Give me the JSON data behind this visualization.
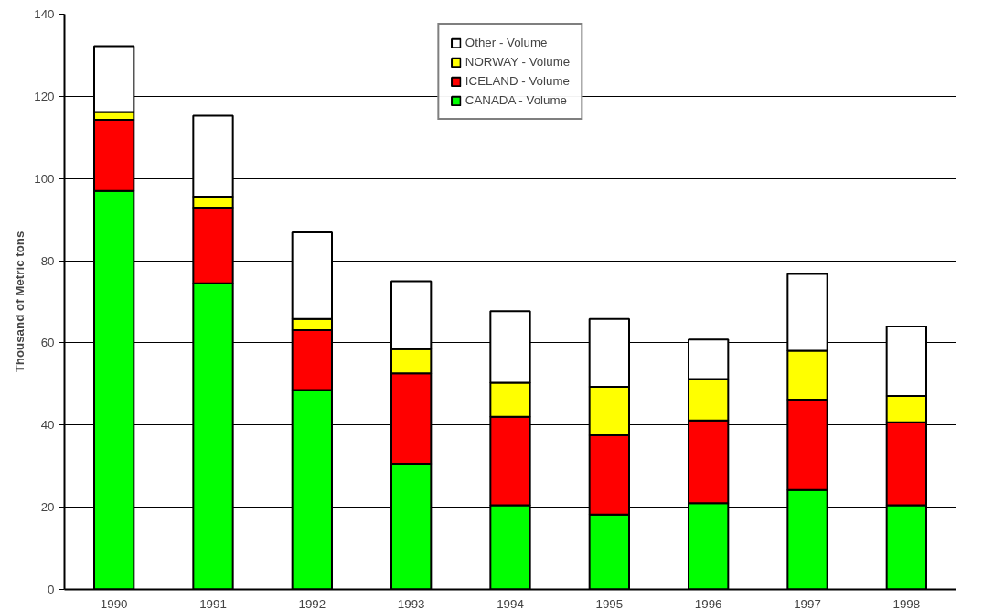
{
  "chart_data": {
    "type": "bar",
    "stacked": true,
    "ylabel": "Thousand of Metric tons",
    "categories": [
      "1990",
      "1991",
      "1992",
      "1993",
      "1994",
      "1995",
      "1996",
      "1997",
      "1998"
    ],
    "series": [
      {
        "name": "CANADA - Volume",
        "color": "#00ff00",
        "values": [
          97,
          74.5,
          48.5,
          30.6,
          20.5,
          18.2,
          21,
          24.2,
          20.5
        ]
      },
      {
        "name": "ICELAND - Volume",
        "color": "#ff0000",
        "values": [
          17.3,
          18.4,
          14.6,
          22,
          21.5,
          19.3,
          20.1,
          22,
          20.2
        ]
      },
      {
        "name": "NORWAY - Volume",
        "color": "#ffff00",
        "values": [
          1.9,
          2.7,
          2.7,
          5.9,
          8.3,
          11.8,
          10.1,
          11.9,
          6.4
        ]
      },
      {
        "name": "Other - Volume",
        "color": "#ffffff",
        "values": [
          16,
          19.7,
          21.1,
          16.5,
          17.4,
          16.5,
          9.6,
          18.7,
          16.9
        ]
      }
    ],
    "ylim": [
      0,
      140
    ],
    "yticks": [
      0,
      20,
      40,
      60,
      80,
      100,
      120,
      140
    ],
    "grid": "y",
    "legend": "top"
  }
}
